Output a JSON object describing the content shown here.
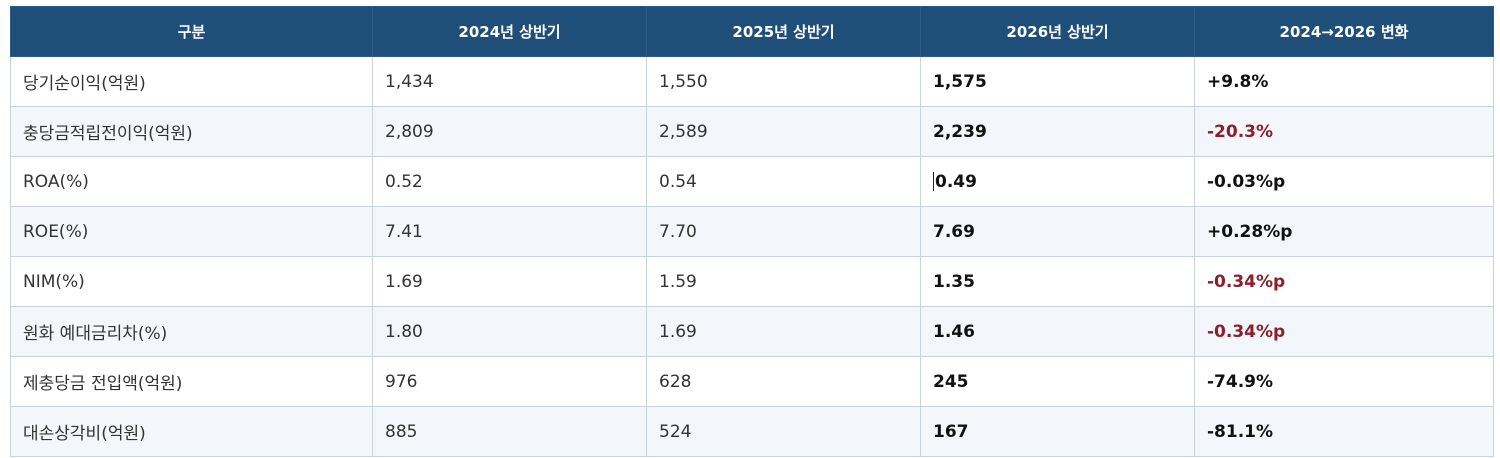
{
  "table": {
    "headers": [
      "구분",
      "2024년 상반기",
      "2025년 상반기",
      "2026년 상반기",
      "2024→2026 변화"
    ],
    "rows": [
      {
        "label": "당기순이익(억원)",
        "y2024": "1,434",
        "y2025": "1,550",
        "y2026": "1,575",
        "change": "+9.8%",
        "change_tone": "neutral"
      },
      {
        "label": "충당금적립전이익(억원)",
        "y2024": "2,809",
        "y2025": "2,589",
        "y2026": "2,239",
        "change": "-20.3%",
        "change_tone": "negative"
      },
      {
        "label": "ROA(%)",
        "y2024": "0.52",
        "y2025": "0.54",
        "y2026": "0.49",
        "change": "-0.03%p",
        "change_tone": "neutral"
      },
      {
        "label": "ROE(%)",
        "y2024": "7.41",
        "y2025": "7.70",
        "y2026": "7.69",
        "change": "+0.28%p",
        "change_tone": "neutral"
      },
      {
        "label": "NIM(%)",
        "y2024": "1.69",
        "y2025": "1.59",
        "y2026": "1.35",
        "change": "-0.34%p",
        "change_tone": "negative"
      },
      {
        "label": "원화 예대금리차(%)",
        "y2024": "1.80",
        "y2025": "1.69",
        "y2026": "1.46",
        "change": "-0.34%p",
        "change_tone": "negative"
      },
      {
        "label": "제충당금 전입액(억원)",
        "y2024": "976",
        "y2025": "628",
        "y2026": "245",
        "change": "-74.9%",
        "change_tone": "neutral"
      },
      {
        "label": "대손상각비(억원)",
        "y2024": "885",
        "y2025": "524",
        "y2026": "167",
        "change": "-81.1%",
        "change_tone": "neutral"
      }
    ]
  },
  "colors": {
    "header_bg": "#1f4e79",
    "header_text": "#ffffff",
    "negative_change": "#8b1f2a",
    "row_alt_bg": "#f3f7fb",
    "grid_line": "#c9d3de"
  }
}
